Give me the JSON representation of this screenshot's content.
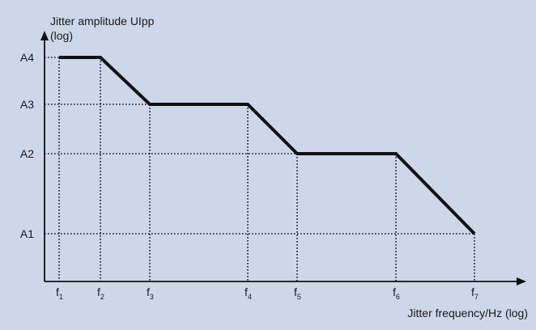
{
  "y_axis": {
    "title": "Jitter amplitude UIpp",
    "scale_note": "(log)",
    "labels": [
      "A4",
      "A3",
      "A2",
      "A1"
    ]
  },
  "x_axis": {
    "title": "Jitter frequency/Hz (log)",
    "labels": [
      {
        "base": "f",
        "sub": "1"
      },
      {
        "base": "f",
        "sub": "2"
      },
      {
        "base": "f",
        "sub": "3"
      },
      {
        "base": "f",
        "sub": "4"
      },
      {
        "base": "f",
        "sub": "5"
      },
      {
        "base": "f",
        "sub": "6"
      },
      {
        "base": "f",
        "sub": "7"
      }
    ]
  }
}
